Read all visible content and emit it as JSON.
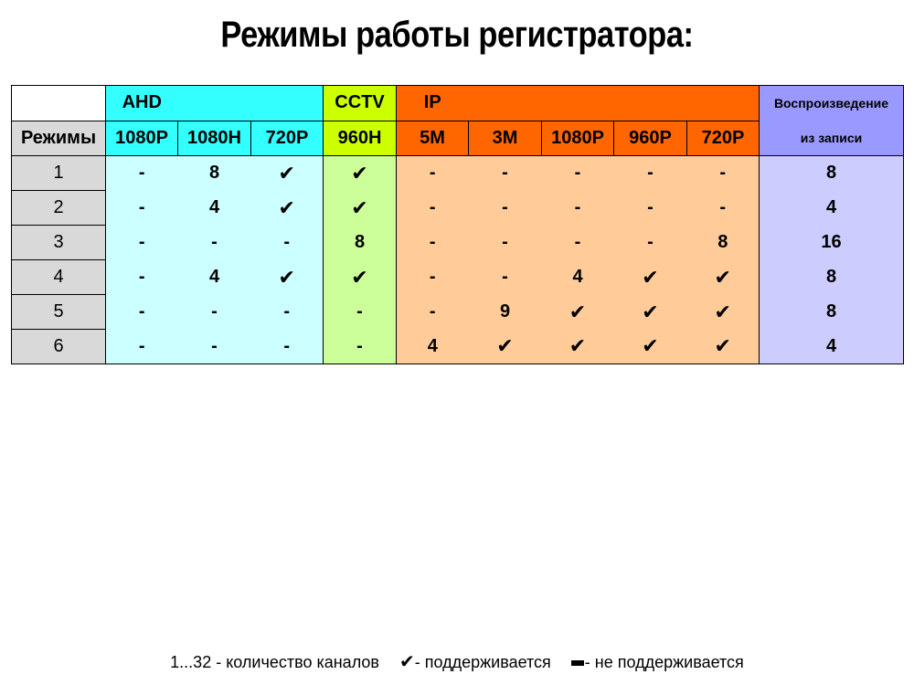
{
  "title": "Режимы работы регистратора:",
  "header": {
    "ahd": "AHD",
    "cctv": "CCTV",
    "ip": "IP",
    "playback_line1": "Воспроизведение",
    "playback_line2": "из записи",
    "modes": "Режимы",
    "cols": [
      "1080P",
      "1080H",
      "720P",
      "960H",
      "5M",
      "3M",
      "1080P",
      "960P",
      "720P"
    ]
  },
  "rows": [
    {
      "mode": "1",
      "cells": [
        "-",
        "8",
        "check",
        "check",
        "-",
        "-",
        "-",
        "-",
        "-"
      ],
      "playback": "8"
    },
    {
      "mode": "2",
      "cells": [
        "-",
        "4",
        "check",
        "check",
        "-",
        "-",
        "-",
        "-",
        "-"
      ],
      "playback": "4"
    },
    {
      "mode": "3",
      "cells": [
        "-",
        "-",
        "-",
        "8",
        "-",
        "-",
        "-",
        "-",
        "8"
      ],
      "playback": "16"
    },
    {
      "mode": "4",
      "cells": [
        "-",
        "4",
        "check",
        "check",
        "-",
        "-",
        "4",
        "check",
        "check"
      ],
      "playback": "8"
    },
    {
      "mode": "5",
      "cells": [
        "-",
        "-",
        "-",
        "-",
        "-",
        "9",
        "check",
        "check",
        "check"
      ],
      "playback": "8"
    },
    {
      "mode": "6",
      "cells": [
        "-",
        "-",
        "-",
        "-",
        "4",
        "check",
        "check",
        "check",
        "check"
      ],
      "playback": "4"
    }
  ],
  "legend": {
    "channels": "1...32 - количество каналов",
    "supported": "- поддерживается",
    "not_supported": "- не поддерживается"
  },
  "colors": {
    "ahd_header": "#33ffff",
    "ahd_body": "#ccffff",
    "cctv_header": "#ccff00",
    "cctv_body": "#ccff99",
    "ip_header": "#ff6600",
    "ip_body": "#ffcc99",
    "playback_header": "#9999ff",
    "playback_body": "#ccccff",
    "mode_column": "#d9d9d9"
  },
  "icons": {
    "check": "check-icon",
    "dash": "dash-icon"
  }
}
